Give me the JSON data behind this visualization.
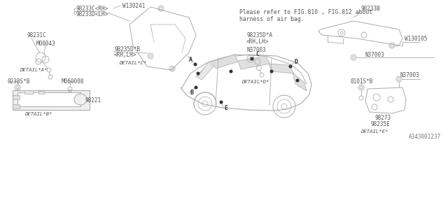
{
  "bg_color": "#ffffff",
  "line_color": "#aaaaaa",
  "text_color": "#555555",
  "dark_color": "#333333",
  "title_note": "Please refer to FIG.810 , FIG.812 about\nharness of air bag.",
  "part_number": "A343001237",
  "label_98233C": "98233C<RH>",
  "label_98233D": "98233D<LH>",
  "label_W130241": "W130241",
  "label_98231C": "98231C",
  "label_M00043": "M00043",
  "label_98235DB": "98235D*B",
  "label_RHLH": "<RH,LH>",
  "label_98233B": "98233B",
  "label_W130105": "W130105",
  "label_98235DA": "98235D*A",
  "label_N37003": "N37003",
  "label_0238SB": "0238S*B",
  "label_M060008": "M060008",
  "label_98221": "98221",
  "label_0101SB": "0101S*B",
  "label_98273": "98273",
  "label_98235E": "98235E",
  "detail_A": "DETAIL*A*",
  "detail_B": "DETAIL*B*",
  "detail_C": "DETAIL*C*",
  "detail_D": "DETAIL*D*",
  "detail_E": "DETAIL*E*"
}
